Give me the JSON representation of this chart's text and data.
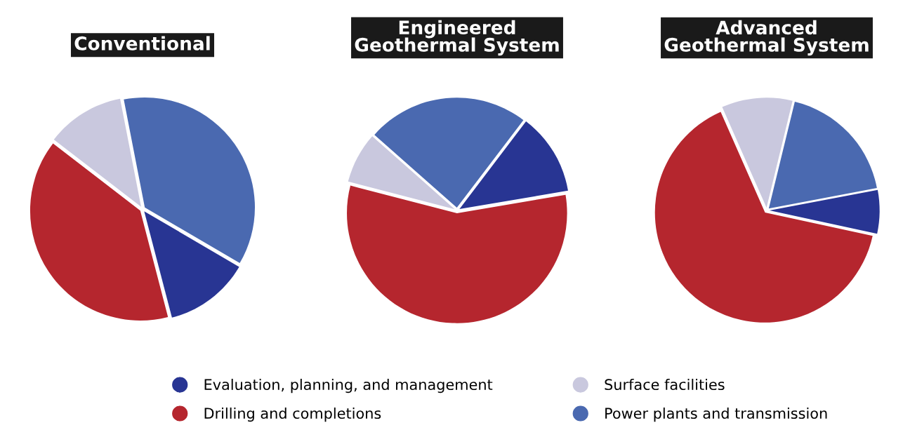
{
  "chart_data": [
    {
      "type": "pie",
      "title": "Conventional",
      "categories": [
        "Evaluation, planning, and management",
        "Drilling and completions",
        "Surface facilities",
        "Power plants and transmission"
      ],
      "values": [
        12.5,
        39.5,
        11.5,
        36.5
      ],
      "colors": [
        "#283593",
        "#b5262e",
        "#c9c8de",
        "#4a69b0"
      ],
      "legend": "bottom"
    },
    {
      "type": "pie",
      "title": "Engineered\nGeothermal System",
      "values": [
        12,
        56.7,
        7.5,
        23.8
      ],
      "colors": [
        "#283593",
        "#b5262e",
        "#c9c8de",
        "#4a69b0"
      ]
    },
    {
      "type": "pie",
      "title": "Advanced\nGeothermal System",
      "values": [
        6.4,
        65,
        10.4,
        18.2
      ],
      "colors": [
        "#283593",
        "#b5262e",
        "#c9c8de",
        "#4a69b0"
      ]
    }
  ]
}
